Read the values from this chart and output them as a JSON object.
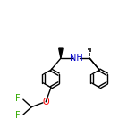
{
  "bg_color": "#ffffff",
  "bond_color": "#000000",
  "N_color": "#0000cc",
  "O_color": "#ff0000",
  "F_color": "#33aa00",
  "label_F1": "F",
  "label_F2": "F",
  "label_O": "O",
  "label_NH": "NH",
  "figsize": [
    1.52,
    1.52
  ],
  "dpi": 100
}
